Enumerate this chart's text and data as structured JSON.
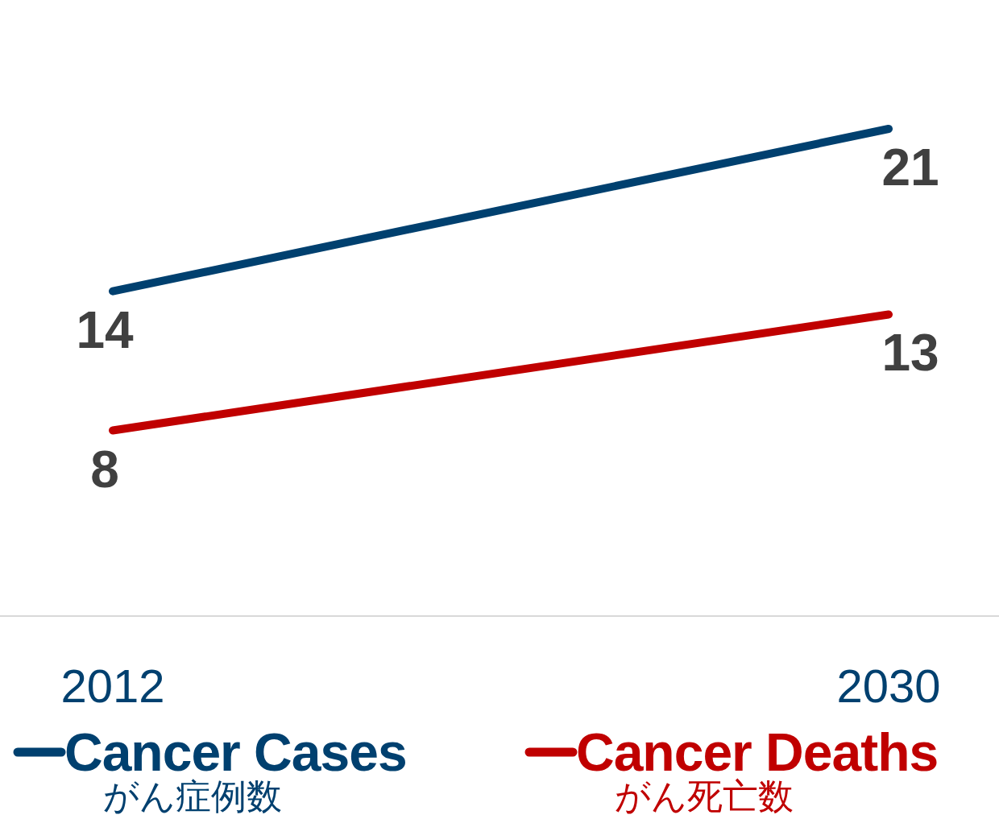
{
  "chart_data": {
    "type": "line",
    "categories": [
      "2012",
      "2030"
    ],
    "series": [
      {
        "name": "Cancer Cases",
        "color": "#00406f",
        "values": [
          14,
          21
        ]
      },
      {
        "name": "Cancer Deaths",
        "color": "#c00000",
        "values": [
          8,
          13
        ]
      }
    ],
    "data_labels": true,
    "legend": "bottom",
    "marker": "none",
    "line_style": "solid",
    "annotations": [
      "がん症例数",
      "がん死亡数"
    ]
  }
}
